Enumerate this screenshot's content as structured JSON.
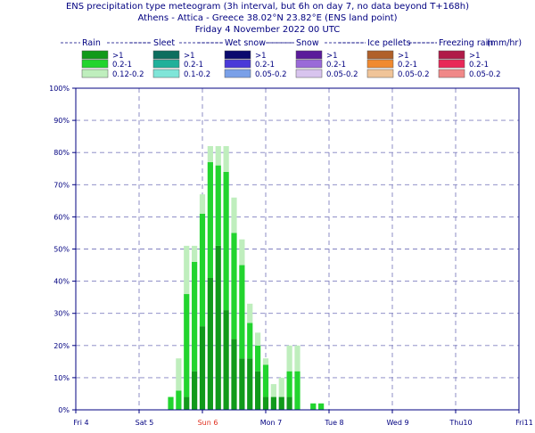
{
  "title": {
    "line1": "ENS precipitation type meteogram (3h interval, but 6h on day 7, no data beyond T+168h)",
    "line2": "Athens - Attica - Greece 38.02°N 23.82°E (ENS land point)",
    "line3": "Friday  4 November 2022 00 UTC"
  },
  "legend": {
    "unit_label": "(mm/hr)",
    "groups": [
      {
        "name": "Rain",
        "entries": [
          {
            "label": ">1",
            "color": "#119a1a"
          },
          {
            "label": "0.2-1",
            "color": "#22d42e"
          },
          {
            "label": "0.12-0.2",
            "color": "#bfeebd"
          }
        ]
      },
      {
        "name": "Sleet",
        "entries": [
          {
            "label": ">1",
            "color": "#0d6e5e"
          },
          {
            "label": "0.2-1",
            "color": "#20b09a"
          },
          {
            "label": "0.1-0.2",
            "color": "#7fe5d8"
          }
        ]
      },
      {
        "name": "Wet snow",
        "entries": [
          {
            "label": ">1",
            "color": "#0a0a6e"
          },
          {
            "label": "0.2-1",
            "color": "#4a3ad8"
          },
          {
            "label": "0.05-0.2",
            "color": "#7aa0e8"
          }
        ]
      },
      {
        "name": "Snow",
        "entries": [
          {
            "label": ">1",
            "color": "#5a1a9a"
          },
          {
            "label": "0.2-1",
            "color": "#9a6ad8"
          },
          {
            "label": "0.05-0.2",
            "color": "#d8c4ee"
          }
        ]
      },
      {
        "name": "Ice pellets",
        "entries": [
          {
            "label": ">1",
            "color": "#b0602a"
          },
          {
            "label": "0.2-1",
            "color": "#f08a30"
          },
          {
            "label": "0.05-0.2",
            "color": "#f0c498"
          }
        ]
      },
      {
        "name": "Freezing rain",
        "entries": [
          {
            "label": ">1",
            "color": "#b01a48"
          },
          {
            "label": "0.2-1",
            "color": "#e82858"
          },
          {
            "label": "0.05-0.2",
            "color": "#f08888"
          }
        ]
      }
    ]
  },
  "chart_data": {
    "type": "bar",
    "stacked": true,
    "ylabel": "",
    "ylim": [
      0,
      100
    ],
    "y_ticks": [
      "0%",
      "10%",
      "20%",
      "30%",
      "40%",
      "50%",
      "60%",
      "70%",
      "80%",
      "90%",
      "100%"
    ],
    "x_day_labels": [
      {
        "label": "Fri 4",
        "color": "#000080"
      },
      {
        "label": "Sat 5",
        "color": "#000080"
      },
      {
        "label": "Sun 6",
        "color": "#e03020"
      },
      {
        "label": "Mon 7",
        "color": "#000080"
      },
      {
        "label": "Tue 8",
        "color": "#000080"
      },
      {
        "label": "Wed 9",
        "color": "#000080"
      },
      {
        "label": "Thu10",
        "color": "#000080"
      },
      {
        "label": "Fri11",
        "color": "#000080"
      }
    ],
    "grid": true,
    "x_hours": [
      36,
      39,
      42,
      45,
      48,
      51,
      54,
      57,
      60,
      63,
      66,
      69,
      72,
      75,
      78,
      81,
      84,
      90,
      93
    ],
    "series": [
      {
        "name": ">1",
        "color": "#119a1a",
        "values": [
          0,
          0,
          4,
          12,
          26,
          41,
          51,
          31,
          22,
          16,
          16,
          12,
          4,
          4,
          4,
          4,
          0,
          0,
          0
        ]
      },
      {
        "name": "0.2-1",
        "color": "#22d42e",
        "values": [
          4,
          6,
          32,
          34,
          35,
          36,
          25,
          43,
          33,
          29,
          11,
          8,
          10,
          0,
          0,
          8,
          12,
          2,
          2
        ]
      },
      {
        "name": "0.12-0.2",
        "color": "#bfeebd",
        "values": [
          0,
          10,
          15,
          5,
          6,
          5,
          6,
          8,
          11,
          8,
          6,
          4,
          2,
          4,
          6,
          8,
          8,
          0,
          0
        ]
      }
    ]
  }
}
